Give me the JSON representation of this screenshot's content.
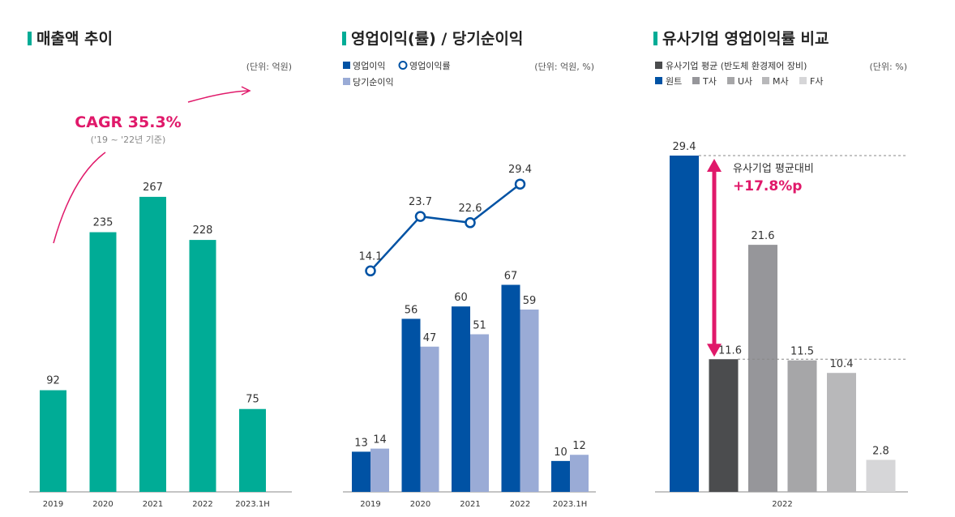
{
  "colors": {
    "accent_green": "#00ac96",
    "op_profit": "#0052a4",
    "net_income": "#9aabd6",
    "line": "#0052a4",
    "highlight": "#e0196a",
    "peer_avg": "#4b4c4e",
    "wonik": "#0052a4",
    "t": "#96969a",
    "u": "#a6a6a8",
    "m": "#b8b8ba",
    "f": "#d6d6d8"
  },
  "chart_data": [
    {
      "type": "bar",
      "title": "매출액 추이",
      "unit": "(단위: 억원)",
      "categories": [
        "2019",
        "2020",
        "2021",
        "2022",
        "2023.1H"
      ],
      "values": [
        92,
        235,
        267,
        228,
        75
      ],
      "data_labels": [
        "92",
        "235",
        "267",
        "228",
        "75"
      ],
      "ylim": [
        0,
        330
      ],
      "annotation": {
        "main": "CAGR 35.3%",
        "sub": "('19 ~ '22년 기준)"
      }
    },
    {
      "type": "bar",
      "title": "영업이익(률) / 당기순이익",
      "unit": "(단위: 억원, %)",
      "categories": [
        "2019",
        "2020",
        "2021",
        "2022",
        "2023.1H"
      ],
      "series": [
        {
          "name": "영업이익",
          "values": [
            13,
            56,
            60,
            67,
            10
          ],
          "labels": [
            "13",
            "56",
            "60",
            "67",
            "10"
          ]
        },
        {
          "name": "당기순이익",
          "values": [
            14,
            47,
            51,
            59,
            12
          ],
          "labels": [
            "14",
            "47",
            "51",
            "59",
            "12"
          ]
        }
      ],
      "ylim": [
        0,
        118
      ],
      "line_series": {
        "name": "영업이익률",
        "categories": [
          "2019",
          "2020",
          "2021",
          "2022"
        ],
        "values": [
          14.1,
          23.7,
          22.6,
          29.4
        ],
        "labels": [
          "14.1",
          "23.7",
          "22.6",
          "29.4"
        ],
        "ylim": [
          0,
          45
        ]
      }
    },
    {
      "type": "bar",
      "title": "유사기업 영업이익률 비교",
      "unit": "(단위: %)",
      "categories": [
        "2022"
      ],
      "legend": [
        "유사기업 평균 (반도체 환경제어 장비)",
        "원트",
        "T사",
        "U사",
        "M사",
        "F사"
      ],
      "bars": [
        {
          "name": "원트",
          "value": 29.4,
          "label": "29.4"
        },
        {
          "name": "유사기업 평균 (반도체 환경제어 장비)",
          "value": 11.6,
          "label": "11.6"
        },
        {
          "name": "T사",
          "value": 21.6,
          "label": "21.6"
        },
        {
          "name": "U사",
          "value": 11.5,
          "label": "11.5"
        },
        {
          "name": "M사",
          "value": 10.4,
          "label": "10.4"
        },
        {
          "name": "F사",
          "value": 2.8,
          "label": "2.8"
        }
      ],
      "ylim": [
        0,
        35.2
      ],
      "annotation": {
        "main": "유사기업 평균대비",
        "sub": "+17.8%p"
      }
    }
  ]
}
